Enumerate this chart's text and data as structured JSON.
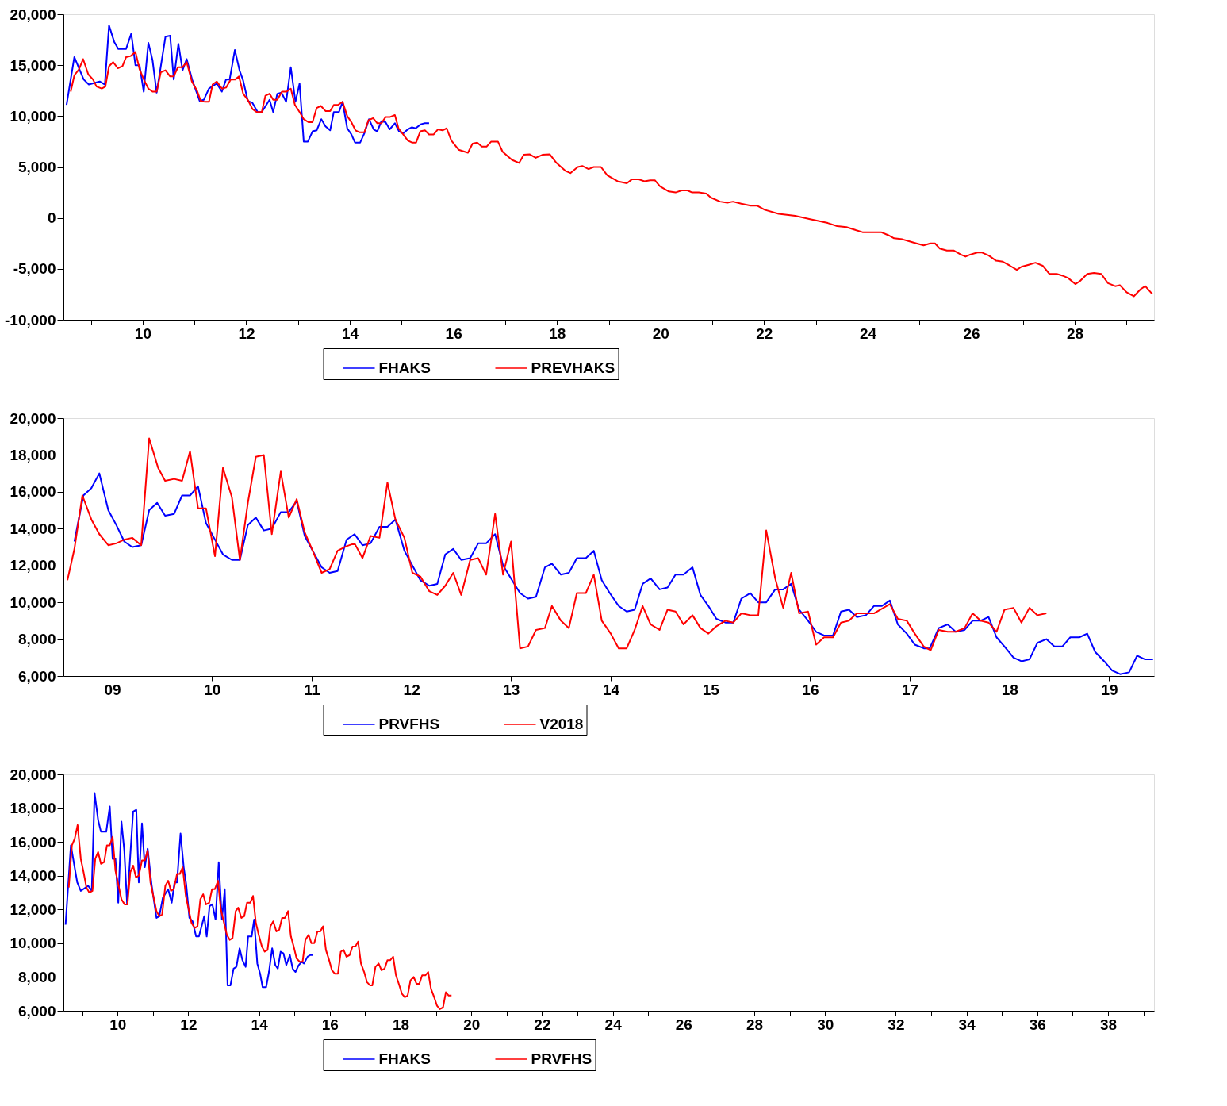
{
  "chart_data": [
    {
      "type": "line",
      "legend": "bottom",
      "grid": false,
      "xlim": [
        2008.47,
        2029.53
      ],
      "xticks": [
        {
          "value": 2009,
          "label": null
        },
        {
          "value": 2010,
          "label": "10"
        },
        {
          "value": 2011,
          "label": null
        },
        {
          "value": 2012,
          "label": "12"
        },
        {
          "value": 2013,
          "label": null
        },
        {
          "value": 2014,
          "label": "14"
        },
        {
          "value": 2015,
          "label": null
        },
        {
          "value": 2016,
          "label": "16"
        },
        {
          "value": 2017,
          "label": null
        },
        {
          "value": 2018,
          "label": "18"
        },
        {
          "value": 2019,
          "label": null
        },
        {
          "value": 2020,
          "label": "20"
        },
        {
          "value": 2021,
          "label": null
        },
        {
          "value": 2022,
          "label": "22"
        },
        {
          "value": 2023,
          "label": null
        },
        {
          "value": 2024,
          "label": "24"
        },
        {
          "value": 2025,
          "label": null
        },
        {
          "value": 2026,
          "label": "26"
        },
        {
          "value": 2027,
          "label": null
        },
        {
          "value": 2028,
          "label": "28"
        },
        {
          "value": 2029,
          "label": null
        }
      ],
      "ylim": [
        -10000,
        20000
      ],
      "yticks": [
        {
          "value": -10000,
          "label": "-10,000"
        },
        {
          "value": -5000,
          "label": "-5,000"
        },
        0,
        {
          "value": 5000,
          "label": "5,000"
        },
        {
          "value": 10000,
          "label": "10,000"
        },
        {
          "value": 15000,
          "label": "15,000"
        },
        {
          "value": 20000,
          "label": "20,000"
        }
      ],
      "series": [
        {
          "name": "FHAKS",
          "color": "#0000ff",
          "x": [
            2008.53,
            2008.68,
            2008.86,
            2008.96,
            2009.17,
            2009.27,
            2009.35,
            2009.45,
            2009.53,
            2009.68,
            2009.78,
            2009.86,
            2009.94,
            2010.02,
            2010.11,
            2010.19,
            2010.27,
            2010.44,
            2010.53,
            2010.6,
            2010.69,
            2010.77,
            2010.85,
            2010.96,
            2011.1,
            2011.18,
            2011.28,
            2011.43,
            2011.53,
            2011.61,
            2011.68,
            2011.78,
            2011.87,
            2011.94,
            2012.03,
            2012.12,
            2012.22,
            2012.3,
            2012.45,
            2012.52,
            2012.6,
            2012.68,
            2012.77,
            2012.86,
            2012.95,
            2013.03,
            2013.11,
            2013.19,
            2013.28,
            2013.36,
            2013.45,
            2013.53,
            2013.62,
            2013.69,
            2013.79,
            2013.86,
            2013.95,
            2014.03,
            2014.1,
            2014.2,
            2014.28,
            2014.37,
            2014.46,
            2014.53,
            2014.61,
            2014.69,
            2014.77,
            2014.87,
            2014.95,
            2015.03,
            2015.12,
            2015.2,
            2015.27,
            2015.37,
            2015.45,
            2015.53
          ],
          "values": [
            11100,
            15800,
            13600,
            13100,
            13400,
            13100,
            18900,
            17300,
            16600,
            16600,
            18100,
            15000,
            15000,
            12400,
            17200,
            15500,
            12300,
            17800,
            17900,
            13600,
            17100,
            14500,
            15600,
            13500,
            11500,
            11600,
            12700,
            13200,
            12400,
            13600,
            13600,
            16500,
            14500,
            13500,
            11500,
            11300,
            10400,
            10400,
            11600,
            10400,
            12200,
            12300,
            11400,
            14800,
            11400,
            13200,
            7500,
            7500,
            8500,
            8600,
            9700,
            9000,
            8600,
            10400,
            10400,
            11400,
            8800,
            8200,
            7400,
            7400,
            8300,
            9700,
            8700,
            8500,
            9500,
            9400,
            8700,
            9300,
            8500,
            8300,
            8700,
            8900,
            8800,
            9200,
            9300,
            9300
          ]
        },
        {
          "name": "PREVHAKS",
          "color": "#ff0000",
          "x": [
            2008.61,
            2008.68,
            2008.77,
            2008.85,
            2008.95,
            2009.04,
            2009.11,
            2009.21,
            2009.28,
            2009.35,
            2009.43,
            2009.52,
            2009.61,
            2009.68,
            2009.77,
            2009.86,
            2009.94,
            2010.03,
            2010.11,
            2010.19,
            2010.27,
            2010.35,
            2010.44,
            2010.53,
            2010.6,
            2010.68,
            2010.77,
            2010.85,
            2010.95,
            2011.05,
            2011.12,
            2011.2,
            2011.28,
            2011.35,
            2011.43,
            2011.53,
            2011.61,
            2011.7,
            2011.79,
            2011.86,
            2011.94,
            2012.03,
            2012.12,
            2012.2,
            2012.3,
            2012.37,
            2012.45,
            2012.52,
            2012.6,
            2012.69,
            2012.78,
            2012.86,
            2012.94,
            2013.03,
            2013.11,
            2013.2,
            2013.28,
            2013.36,
            2013.44,
            2013.53,
            2013.62,
            2013.69,
            2013.77,
            2013.86,
            2013.95,
            2014.03,
            2014.11,
            2014.19,
            2014.28,
            2014.36,
            2014.45,
            2014.53,
            2014.61,
            2014.69,
            2014.77,
            2014.87,
            2014.94,
            2015.03,
            2015.12,
            2015.2,
            2015.28,
            2015.36,
            2015.45,
            2015.53,
            2015.62,
            2015.7,
            2015.79,
            2015.87,
            2015.96,
            2016.1,
            2016.28,
            2016.37,
            2016.46,
            2016.55,
            2016.64,
            2016.73,
            2016.86,
            2016.95,
            2017.13,
            2017.27,
            2017.36,
            2017.47,
            2017.59,
            2017.72,
            2017.86,
            2017.99,
            2018.17,
            2018.26,
            2018.4,
            2018.49,
            2018.61,
            2018.71,
            2018.85,
            2018.97,
            2019.17,
            2019.35,
            2019.45,
            2019.57,
            2019.69,
            2019.8,
            2019.89,
            2019.99,
            2020.16,
            2020.29,
            2020.41,
            2020.52,
            2020.61,
            2020.74,
            2020.88,
            2020.97,
            2021.15,
            2021.29,
            2021.4,
            2021.56,
            2021.74,
            2021.87,
            2022.01,
            2022.28,
            2022.6,
            2022.87,
            2023.23,
            2023.41,
            2023.59,
            2023.77,
            2023.9,
            2024.04,
            2024.26,
            2024.4,
            2024.51,
            2024.67,
            2024.81,
            2024.94,
            2025.08,
            2025.21,
            2025.3,
            2025.39,
            2025.53,
            2025.66,
            2025.8,
            2025.89,
            2025.98,
            2026.12,
            2026.21,
            2026.34,
            2026.48,
            2026.61,
            2026.75,
            2026.88,
            2026.97,
            2027.11,
            2027.24,
            2027.38,
            2027.51,
            2027.65,
            2027.78,
            2027.87,
            2028.01,
            2028.1,
            2028.24,
            2028.37,
            2028.51,
            2028.64,
            2028.78,
            2028.87,
            2029.0,
            2029.14,
            2029.27,
            2029.36,
            2029.5
          ],
          "values": [
            12400,
            14000,
            14600,
            15600,
            14100,
            13600,
            12900,
            12700,
            12900,
            14900,
            15300,
            14700,
            14900,
            15800,
            15900,
            16300,
            14600,
            13500,
            12700,
            12400,
            12400,
            14300,
            14500,
            13900,
            13900,
            14800,
            14800,
            15300,
            13400,
            12500,
            11500,
            11400,
            11400,
            13100,
            13400,
            12700,
            12800,
            13600,
            13600,
            13900,
            12200,
            11600,
            10700,
            10400,
            10400,
            12000,
            12200,
            11600,
            11600,
            12400,
            12400,
            12700,
            11100,
            10400,
            9700,
            9400,
            9400,
            10800,
            11000,
            10500,
            10500,
            11100,
            11100,
            11400,
            10000,
            9400,
            8600,
            8400,
            8400,
            9600,
            9800,
            9300,
            9300,
            9900,
            9900,
            10100,
            8800,
            8200,
            7600,
            7400,
            7400,
            8500,
            8600,
            8200,
            8200,
            8700,
            8600,
            8800,
            7600,
            6700,
            6400,
            7300,
            7400,
            7000,
            7000,
            7500,
            7500,
            6500,
            5700,
            5400,
            6200,
            6250,
            5900,
            6200,
            6250,
            5400,
            4600,
            4400,
            5000,
            5100,
            4800,
            5000,
            5000,
            4200,
            3600,
            3400,
            3800,
            3800,
            3600,
            3700,
            3700,
            3100,
            2600,
            2500,
            2700,
            2700,
            2500,
            2500,
            2400,
            2000,
            1600,
            1500,
            1600,
            1400,
            1200,
            1200,
            800,
            400,
            200,
            -100,
            -500,
            -800,
            -900,
            -1200,
            -1400,
            -1400,
            -1400,
            -1700,
            -2000,
            -2100,
            -2300,
            -2500,
            -2700,
            -2500,
            -2500,
            -3000,
            -3200,
            -3200,
            -3600,
            -3800,
            -3600,
            -3400,
            -3400,
            -3700,
            -4200,
            -4300,
            -4700,
            -5100,
            -4800,
            -4600,
            -4400,
            -4700,
            -5500,
            -5500,
            -5700,
            -5900,
            -6500,
            -6200,
            -5500,
            -5400,
            -5500,
            -6400,
            -6700,
            -6600,
            -7300,
            -7700,
            -7000,
            -6700,
            -7500
          ]
        }
      ]
    },
    {
      "type": "line",
      "legend": "bottom",
      "grid": false,
      "xlim": [
        2008.51,
        2019.45
      ],
      "xticks": [
        {
          "value": 2009,
          "label": "09"
        },
        {
          "value": 2010,
          "label": "10"
        },
        {
          "value": 2011,
          "label": "11"
        },
        {
          "value": 2012,
          "label": "12"
        },
        {
          "value": 2013,
          "label": "13"
        },
        {
          "value": 2014,
          "label": "14"
        },
        {
          "value": 2015,
          "label": "15"
        },
        {
          "value": 2016,
          "label": "16"
        },
        {
          "value": 2017,
          "label": "17"
        },
        {
          "value": 2018,
          "label": "18"
        },
        {
          "value": 2019,
          "label": "19"
        }
      ],
      "ylim": [
        6000,
        20000
      ],
      "yticks": [
        {
          "value": 6000,
          "label": "6,000"
        },
        {
          "value": 8000,
          "label": "8,000"
        },
        {
          "value": 10000,
          "label": "10,000"
        },
        {
          "value": 12000,
          "label": "12,000"
        },
        {
          "value": 14000,
          "label": "14,000"
        },
        {
          "value": 16000,
          "label": "16,000"
        },
        {
          "value": 18000,
          "label": "18,000"
        },
        {
          "value": 20000,
          "label": "20,000"
        }
      ],
      "series": [
        {
          "name": "PRVFHS",
          "color": "#0000ff",
          "x": [
            2008.62,
            2008.71,
            2008.79,
            2008.87,
            2008.96,
            2009.04,
            2009.12,
            2009.2,
            2009.29,
            2009.37,
            2009.45,
            2009.53,
            2009.62,
            2009.7,
            2009.78,
            2009.86,
            2009.94,
            2010.02,
            2010.11,
            2010.2,
            2010.28,
            2010.36,
            2010.44,
            2010.52,
            2010.6,
            2010.69,
            2010.77,
            2010.85,
            2010.93,
            2011.01,
            2011.1,
            2011.18,
            2011.26,
            2011.35,
            2011.43,
            2011.51,
            2011.59,
            2011.68,
            2011.76,
            2011.84,
            2011.93,
            2012.01,
            2012.09,
            2012.18,
            2012.26,
            2012.34,
            2012.42,
            2012.5,
            2012.59,
            2012.67,
            2012.75,
            2012.84,
            2012.92,
            2013.01,
            2013.09,
            2013.17,
            2013.25,
            2013.34,
            2013.41,
            2013.5,
            2013.58,
            2013.66,
            2013.75,
            2013.83,
            2013.91,
            2013.99,
            2014.08,
            2014.16,
            2014.24,
            2014.32,
            2014.4,
            2014.49,
            2014.57,
            2014.65,
            2014.73,
            2014.82,
            2014.9,
            2014.98,
            2015.06,
            2015.15,
            2015.23,
            2015.31,
            2015.4,
            2015.48,
            2015.56,
            2015.65,
            2015.73,
            2015.81,
            2015.89,
            2015.98,
            2016.06,
            2016.14,
            2016.23,
            2016.31,
            2016.39,
            2016.47,
            2016.56,
            2016.64,
            2016.72,
            2016.8,
            2016.88,
            2016.97,
            2017.05,
            2017.14,
            2017.2,
            2017.29,
            2017.38,
            2017.46,
            2017.55,
            2017.63,
            2017.71,
            2017.79,
            2017.87,
            2017.95,
            2018.04,
            2018.12,
            2018.2,
            2018.28,
            2018.37,
            2018.45,
            2018.53,
            2018.61,
            2018.7,
            2018.78,
            2018.86,
            2018.95,
            2019.03,
            2019.11,
            2019.2,
            2019.28,
            2019.36,
            2019.44
          ],
          "values": [
            13300,
            15800,
            16200,
            17000,
            15000,
            14200,
            13300,
            13000,
            13100,
            15000,
            15400,
            14700,
            14800,
            15800,
            15800,
            16300,
            14300,
            13500,
            12600,
            12300,
            12300,
            14200,
            14600,
            13900,
            14000,
            14900,
            14900,
            15500,
            13600,
            12800,
            11900,
            11600,
            11700,
            13400,
            13700,
            13100,
            13200,
            14100,
            14100,
            14500,
            12800,
            12000,
            11200,
            10900,
            11000,
            12600,
            12900,
            12300,
            12400,
            13200,
            13200,
            13700,
            12000,
            11200,
            10500,
            10200,
            10300,
            11900,
            12100,
            11500,
            11600,
            12400,
            12400,
            12800,
            11200,
            10500,
            9800,
            9500,
            9600,
            11000,
            11300,
            10700,
            10800,
            11500,
            11500,
            11900,
            10400,
            9800,
            9100,
            8900,
            8900,
            10200,
            10500,
            10000,
            10000,
            10700,
            10700,
            11000,
            9600,
            9000,
            8400,
            8200,
            8200,
            9500,
            9600,
            9200,
            9300,
            9800,
            9800,
            10100,
            8800,
            8300,
            7700,
            7500,
            7500,
            8600,
            8800,
            8400,
            8500,
            9000,
            9000,
            9200,
            8100,
            7600,
            7000,
            6800,
            6900,
            7800,
            8000,
            7600,
            7600,
            8100,
            8100,
            8300,
            7300,
            6800,
            6300,
            6100,
            6200,
            7100,
            6900,
            6900
          ]
        },
        {
          "name": "V2018",
          "color": "#ff0000",
          "x": [
            2008.55,
            2008.62,
            2008.7,
            2008.79,
            2008.87,
            2008.96,
            2009.04,
            2009.12,
            2009.2,
            2009.29,
            2009.37,
            2009.46,
            2009.53,
            2009.62,
            2009.7,
            2009.78,
            2009.86,
            2009.94,
            2010.03,
            2010.11,
            2010.2,
            2010.28,
            2010.36,
            2010.44,
            2010.52,
            2010.6,
            2010.69,
            2010.77,
            2010.85,
            2010.93,
            2011.01,
            2011.1,
            2011.18,
            2011.26,
            2011.35,
            2011.43,
            2011.51,
            2011.59,
            2011.68,
            2011.76,
            2011.84,
            2011.93,
            2012.01,
            2012.09,
            2012.18,
            2012.26,
            2012.34,
            2012.42,
            2012.5,
            2012.59,
            2012.67,
            2012.75,
            2012.84,
            2012.92,
            2013.0,
            2013.09,
            2013.17,
            2013.25,
            2013.34,
            2013.41,
            2013.5,
            2013.58,
            2013.66,
            2013.75,
            2013.83,
            2013.91,
            2014.0,
            2014.08,
            2014.16,
            2014.24,
            2014.32,
            2014.4,
            2014.49,
            2014.57,
            2014.65,
            2014.73,
            2014.82,
            2014.9,
            2014.98,
            2015.06,
            2015.15,
            2015.23,
            2015.31,
            2015.4,
            2015.48,
            2015.56,
            2015.65,
            2015.73,
            2015.81,
            2015.89,
            2015.98,
            2016.06,
            2016.14,
            2016.23,
            2016.31,
            2016.39,
            2016.47,
            2016.56,
            2016.64,
            2016.8,
            2016.88,
            2016.97,
            2017.05,
            2017.14,
            2017.21,
            2017.29,
            2017.38,
            2017.46,
            2017.55,
            2017.63,
            2017.71,
            2017.79,
            2017.87,
            2017.95,
            2018.04,
            2018.12,
            2018.2,
            2018.28,
            2018.37
          ],
          "values": [
            11200,
            12900,
            15800,
            14500,
            13700,
            13100,
            13200,
            13400,
            13500,
            13100,
            18900,
            17300,
            16600,
            16700,
            16600,
            18200,
            15100,
            15100,
            12500,
            17300,
            15700,
            12300,
            15400,
            17900,
            18000,
            13700,
            17100,
            14600,
            15600,
            13800,
            12800,
            11600,
            11800,
            12800,
            13050,
            13200,
            12400,
            13600,
            13500,
            16500,
            14500,
            13500,
            11600,
            11400,
            10600,
            10400,
            10900,
            11600,
            10400,
            12300,
            12400,
            11500,
            14800,
            11500,
            13300,
            7500,
            7600,
            8500,
            8600,
            9800,
            9000,
            8600,
            10500,
            10500,
            11500,
            9000,
            8300,
            7500,
            7500,
            8500,
            9800,
            8800,
            8500,
            9600,
            9500,
            8800,
            9300,
            8600,
            8300,
            8700,
            9000,
            8900,
            9400,
            9300,
            9300,
            13900,
            11300,
            9700,
            11600,
            9400,
            9500,
            7700,
            8100,
            8100,
            8900,
            9000,
            9400,
            9400,
            9400,
            9900,
            9100,
            9000,
            8300,
            7600,
            7400,
            8500,
            8400,
            8400,
            8600,
            9400,
            9000,
            8900,
            8400,
            9600,
            9700,
            8900,
            9700,
            9300,
            9400
          ]
        }
      ]
    },
    {
      "type": "line",
      "legend": "bottom",
      "grid": false,
      "xlim": [
        2008.47,
        2039.3
      ],
      "xticks": [
        {
          "value": 2009,
          "label": null
        },
        {
          "value": 2010,
          "label": "10"
        },
        {
          "value": 2011,
          "label": null
        },
        {
          "value": 2012,
          "label": "12"
        },
        {
          "value": 2013,
          "label": null
        },
        {
          "value": 2014,
          "label": "14"
        },
        {
          "value": 2015,
          "label": null
        },
        {
          "value": 2016,
          "label": "16"
        },
        {
          "value": 2017,
          "label": null
        },
        {
          "value": 2018,
          "label": "18"
        },
        {
          "value": 2019,
          "label": null
        },
        {
          "value": 2020,
          "label": "20"
        },
        {
          "value": 2021,
          "label": null
        },
        {
          "value": 2022,
          "label": "22"
        },
        {
          "value": 2023,
          "label": null
        },
        {
          "value": 2024,
          "label": "24"
        },
        {
          "value": 2025,
          "label": null
        },
        {
          "value": 2026,
          "label": "26"
        },
        {
          "value": 2027,
          "label": null
        },
        {
          "value": 2028,
          "label": "28"
        },
        {
          "value": 2029,
          "label": null
        },
        {
          "value": 2030,
          "label": "30"
        },
        {
          "value": 2031,
          "label": null
        },
        {
          "value": 2032,
          "label": "32"
        },
        {
          "value": 2033,
          "label": null
        },
        {
          "value": 2034,
          "label": "34"
        },
        {
          "value": 2035,
          "label": null
        },
        {
          "value": 2036,
          "label": "36"
        },
        {
          "value": 2037,
          "label": null
        },
        {
          "value": 2038,
          "label": "38"
        },
        {
          "value": 2039,
          "label": null
        }
      ],
      "ylim": [
        6000,
        20000
      ],
      "yticks": [
        {
          "value": 6000,
          "label": "6,000"
        },
        {
          "value": 8000,
          "label": "8,000"
        },
        {
          "value": 10000,
          "label": "10,000"
        },
        {
          "value": 12000,
          "label": "12,000"
        },
        {
          "value": 14000,
          "label": "14,000"
        },
        {
          "value": 16000,
          "label": "16,000"
        },
        {
          "value": 18000,
          "label": "18,000"
        },
        {
          "value": 20000,
          "label": "20,000"
        }
      ],
      "series": [
        {
          "name": "FHAKS",
          "color": "#0000ff",
          "x": [
            2008.53,
            2008.68,
            2008.86,
            2008.96,
            2009.17,
            2009.27,
            2009.35,
            2009.45,
            2009.53,
            2009.68,
            2009.78,
            2009.86,
            2009.94,
            2010.02,
            2010.11,
            2010.19,
            2010.27,
            2010.44,
            2010.53,
            2010.6,
            2010.69,
            2010.77,
            2010.85,
            2010.96,
            2011.1,
            2011.18,
            2011.28,
            2011.43,
            2011.53,
            2011.61,
            2011.68,
            2011.78,
            2011.87,
            2011.94,
            2012.03,
            2012.12,
            2012.22,
            2012.3,
            2012.45,
            2012.52,
            2012.6,
            2012.68,
            2012.77,
            2012.86,
            2012.95,
            2013.03,
            2013.11,
            2013.19,
            2013.28,
            2013.36,
            2013.45,
            2013.53,
            2013.62,
            2013.69,
            2013.79,
            2013.86,
            2013.95,
            2014.03,
            2014.1,
            2014.2,
            2014.28,
            2014.37,
            2014.46,
            2014.53,
            2014.61,
            2014.69,
            2014.77,
            2014.87,
            2014.95,
            2015.03,
            2015.12,
            2015.2,
            2015.27,
            2015.37,
            2015.45,
            2015.53
          ],
          "values": [
            11100,
            15800,
            13600,
            13100,
            13400,
            13100,
            18900,
            17300,
            16600,
            16600,
            18100,
            15000,
            15000,
            12400,
            17200,
            15500,
            12300,
            17800,
            17900,
            13600,
            17100,
            14500,
            15600,
            13500,
            11500,
            11600,
            12700,
            13200,
            12400,
            13600,
            13600,
            16500,
            14500,
            13500,
            11500,
            11300,
            10400,
            10400,
            11600,
            10400,
            12200,
            12300,
            11400,
            14800,
            11400,
            13200,
            7500,
            7500,
            8500,
            8600,
            9700,
            9000,
            8600,
            10400,
            10400,
            11400,
            8800,
            8200,
            7400,
            7400,
            8300,
            9700,
            8700,
            8500,
            9500,
            9400,
            8700,
            9300,
            8500,
            8300,
            8700,
            8900,
            8800,
            9200,
            9300,
            9300
          ]
        },
        {
          "name": "PRVFHS",
          "color": "#ff0000",
          "x": [
            2008.62,
            2008.71,
            2008.79,
            2008.87,
            2008.96,
            2009.04,
            2009.12,
            2009.2,
            2009.29,
            2009.37,
            2009.45,
            2009.53,
            2009.62,
            2009.7,
            2009.78,
            2009.86,
            2009.94,
            2010.02,
            2010.11,
            2010.2,
            2010.28,
            2010.36,
            2010.44,
            2010.52,
            2010.6,
            2010.69,
            2010.77,
            2010.85,
            2010.93,
            2011.01,
            2011.1,
            2011.18,
            2011.26,
            2011.35,
            2011.43,
            2011.51,
            2011.59,
            2011.68,
            2011.76,
            2011.84,
            2011.93,
            2012.01,
            2012.09,
            2012.18,
            2012.26,
            2012.34,
            2012.42,
            2012.5,
            2012.59,
            2012.67,
            2012.75,
            2012.84,
            2012.92,
            2013.01,
            2013.09,
            2013.17,
            2013.25,
            2013.34,
            2013.41,
            2013.5,
            2013.58,
            2013.66,
            2013.75,
            2013.83,
            2013.91,
            2013.99,
            2014.08,
            2014.16,
            2014.24,
            2014.32,
            2014.4,
            2014.49,
            2014.57,
            2014.65,
            2014.73,
            2014.82,
            2014.9,
            2014.98,
            2015.06,
            2015.15,
            2015.23,
            2015.31,
            2015.4,
            2015.48,
            2015.56,
            2015.65,
            2015.73,
            2015.81,
            2015.89,
            2015.98,
            2016.06,
            2016.14,
            2016.23,
            2016.31,
            2016.39,
            2016.47,
            2016.56,
            2016.64,
            2016.72,
            2016.8,
            2016.88,
            2016.97,
            2017.05,
            2017.14,
            2017.2,
            2017.29,
            2017.38,
            2017.46,
            2017.55,
            2017.63,
            2017.71,
            2017.79,
            2017.87,
            2017.95,
            2018.04,
            2018.12,
            2018.2,
            2018.28,
            2018.37,
            2018.45,
            2018.53,
            2018.61,
            2018.7,
            2018.78,
            2018.86,
            2018.95,
            2019.03,
            2019.11,
            2019.2,
            2019.28,
            2019.36,
            2019.44
          ],
          "values": [
            13300,
            15800,
            16200,
            17000,
            15000,
            14200,
            13300,
            13000,
            13100,
            15000,
            15400,
            14700,
            14800,
            15800,
            15800,
            16300,
            14300,
            13500,
            12600,
            12300,
            12300,
            14200,
            14600,
            13900,
            14000,
            14900,
            14900,
            15500,
            13600,
            12800,
            11900,
            11600,
            11700,
            13400,
            13700,
            13100,
            13200,
            14100,
            14100,
            14500,
            12800,
            12000,
            11200,
            10900,
            11000,
            12600,
            12900,
            12300,
            12400,
            13200,
            13200,
            13700,
            12000,
            11200,
            10500,
            10200,
            10300,
            11900,
            12100,
            11500,
            11600,
            12400,
            12400,
            12800,
            11200,
            10500,
            9800,
            9500,
            9600,
            11000,
            11300,
            10700,
            10800,
            11500,
            11500,
            11900,
            10400,
            9800,
            9100,
            8900,
            8900,
            10200,
            10500,
            10000,
            10000,
            10700,
            10700,
            11000,
            9600,
            9000,
            8400,
            8200,
            8200,
            9500,
            9600,
            9200,
            9300,
            9800,
            9800,
            10100,
            8800,
            8300,
            7700,
            7500,
            7500,
            8600,
            8800,
            8400,
            8500,
            9000,
            9000,
            9200,
            8100,
            7600,
            7000,
            6800,
            6900,
            7800,
            8000,
            7600,
            7600,
            8100,
            8100,
            8300,
            7300,
            6800,
            6300,
            6100,
            6200,
            7100,
            6900,
            6900
          ]
        }
      ]
    }
  ]
}
